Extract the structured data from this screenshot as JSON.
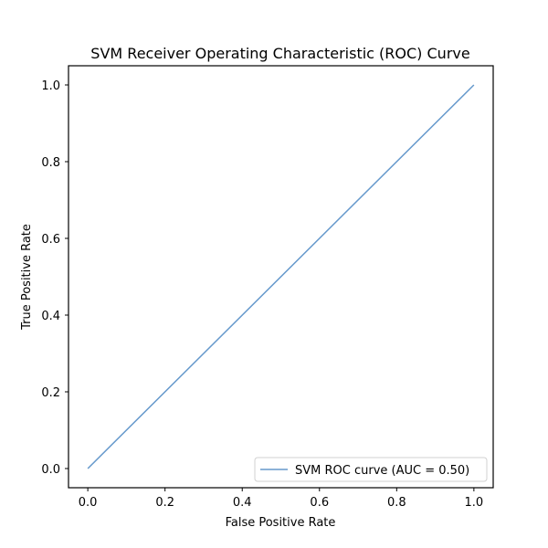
{
  "chart_data": {
    "type": "line",
    "title": "SVM Receiver Operating Characteristic (ROC) Curve",
    "xlabel": "False Positive Rate",
    "ylabel": "True Positive Rate",
    "xlim": [
      -0.05,
      1.05
    ],
    "ylim": [
      -0.05,
      1.05
    ],
    "xticks": [
      0.0,
      0.2,
      0.4,
      0.6,
      0.8,
      1.0
    ],
    "xtick_labels": [
      "0.0",
      "0.2",
      "0.4",
      "0.6",
      "0.8",
      "1.0"
    ],
    "yticks": [
      0.0,
      0.2,
      0.4,
      0.6,
      0.8,
      1.0
    ],
    "ytick_labels": [
      "0.0",
      "0.2",
      "0.4",
      "0.6",
      "0.8",
      "1.0"
    ],
    "grid": false,
    "legend_position": "lower-right",
    "series": [
      {
        "name": "SVM ROC curve (AUC = 0.50)",
        "color": "#6699cc",
        "x": [
          0.0,
          1.0
        ],
        "y": [
          0.0,
          1.0
        ]
      }
    ]
  }
}
